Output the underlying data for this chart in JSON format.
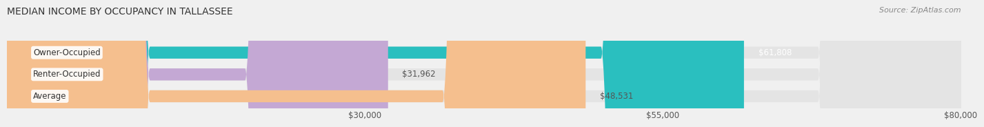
{
  "title": "MEDIAN INCOME BY OCCUPANCY IN TALLASSEE",
  "source": "Source: ZipAtlas.com",
  "categories": [
    "Owner-Occupied",
    "Renter-Occupied",
    "Average"
  ],
  "values": [
    61808,
    31962,
    48531
  ],
  "bar_colors": [
    "#2abfbf",
    "#c4a8d4",
    "#f5bf8e"
  ],
  "label_colors": [
    "#ffffff",
    "#555555",
    "#555555"
  ],
  "value_labels": [
    "$61,808",
    "$31,962",
    "$48,531"
  ],
  "value_label_white": [
    true,
    false,
    false
  ],
  "xmin": 0,
  "xmax": 80000,
  "xticks": [
    30000,
    55000,
    80000
  ],
  "xtick_labels": [
    "$30,000",
    "$55,000",
    "$80,000"
  ],
  "bar_height": 0.55,
  "background_color": "#f0f0f0",
  "bar_background_color": "#e4e4e4",
  "title_fontsize": 10,
  "source_fontsize": 8,
  "label_fontsize": 8.5,
  "tick_fontsize": 8.5
}
